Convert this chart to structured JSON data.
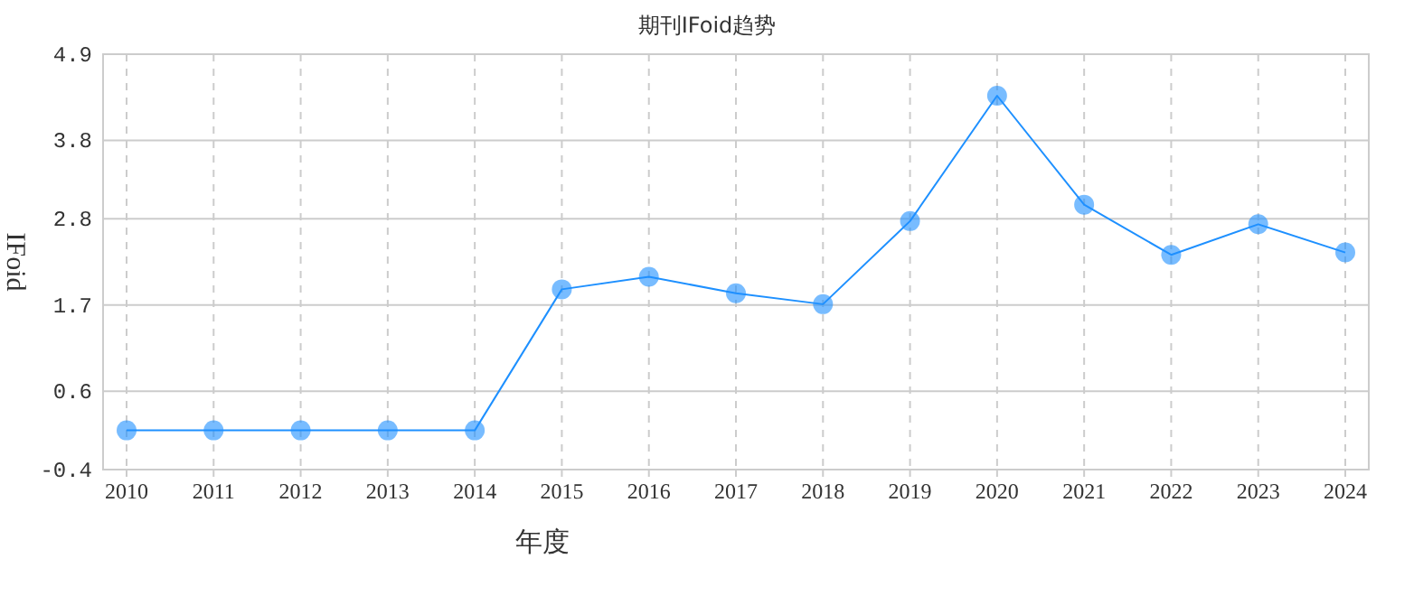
{
  "chart_data": {
    "type": "line",
    "title": "期刊IFoid趋势",
    "xlabel": "年度",
    "ylabel": "IFoid",
    "categories": [
      "2010",
      "2011",
      "2012",
      "2013",
      "2014",
      "2015",
      "2016",
      "2017",
      "2018",
      "2019",
      "2020",
      "2021",
      "2022",
      "2023",
      "2024"
    ],
    "series": [
      {
        "color": "#1e90ff",
        "values": [
          0.1,
          0.1,
          0.1,
          0.1,
          0.1,
          1.9,
          2.06,
          1.85,
          1.71,
          2.77,
          4.37,
          2.98,
          2.34,
          2.73,
          2.37
        ]
      }
    ],
    "ylim": [
      -0.4,
      4.9
    ],
    "yticks": [
      -0.4,
      0.6,
      1.7,
      2.8,
      3.8,
      4.9
    ],
    "grid": true,
    "marker": "circle",
    "line_style": "solid"
  }
}
